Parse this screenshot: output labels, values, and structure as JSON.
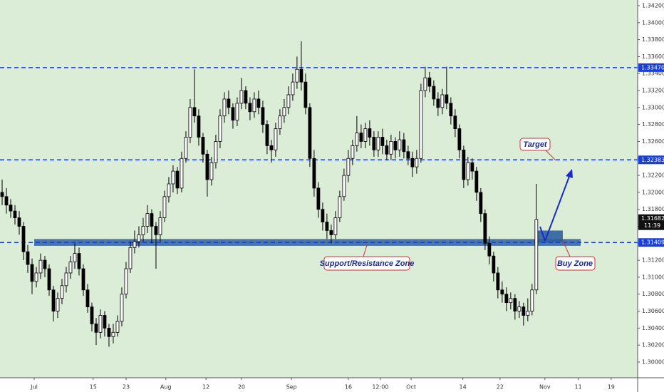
{
  "chart_data": {
    "type": "candlestick",
    "open": [
      1.32,
      1.3195,
      1.3185,
      1.3178,
      1.317,
      1.316,
      1.313,
      1.3115,
      1.3095,
      1.3105,
      1.312,
      1.311,
      1.3085,
      1.306,
      1.3075,
      1.309,
      1.3105,
      1.3118,
      1.3128,
      1.311,
      1.3085,
      1.3065,
      1.3045,
      1.3035,
      1.3055,
      1.304,
      1.303,
      1.3035,
      1.3048,
      1.308,
      1.311,
      1.3135,
      1.3142,
      1.315,
      1.316,
      1.3175,
      1.316,
      1.315,
      1.317,
      1.3195,
      1.321,
      1.3225,
      1.3205,
      1.324,
      1.3265,
      1.33,
      1.329,
      1.3265,
      1.3245,
      1.3215,
      1.3235,
      1.326,
      1.329,
      1.331,
      1.33,
      1.3285,
      1.3305,
      1.332,
      1.3305,
      1.3295,
      1.331,
      1.33,
      1.328,
      1.3255,
      1.325,
      1.3275,
      1.329,
      1.33,
      1.3315,
      1.333,
      1.3345,
      1.333,
      1.33,
      1.324,
      1.3205,
      1.318,
      1.3165,
      1.3155,
      1.315,
      1.317,
      1.3195,
      1.322,
      1.324,
      1.3255,
      1.327,
      1.326,
      1.3275,
      1.3265,
      1.325,
      1.3265,
      1.3255,
      1.3245,
      1.326,
      1.325,
      1.3262,
      1.3248,
      1.324,
      1.323,
      1.324,
      1.332,
      1.3335,
      1.3325,
      1.331,
      1.33,
      1.3315,
      1.3305,
      1.329,
      1.3275,
      1.325,
      1.3215,
      1.3235,
      1.3225,
      1.32,
      1.3175,
      1.314,
      1.3125,
      1.3105,
      1.3085,
      1.308,
      1.307,
      1.3075,
      1.306,
      1.3065,
      1.3055,
      1.306,
      1.3085
    ],
    "high": [
      1.3215,
      1.3205,
      1.3192,
      1.3185,
      1.3178,
      1.3165,
      1.3138,
      1.3122,
      1.3112,
      1.3128,
      1.3125,
      1.3115,
      1.309,
      1.3082,
      1.3098,
      1.3112,
      1.3125,
      1.314,
      1.3135,
      1.3115,
      1.3092,
      1.307,
      1.3052,
      1.3062,
      1.306,
      1.3045,
      1.3045,
      1.3055,
      1.3088,
      1.3118,
      1.3142,
      1.3155,
      1.316,
      1.317,
      1.3185,
      1.318,
      1.3165,
      1.3178,
      1.3202,
      1.3218,
      1.3232,
      1.323,
      1.3248,
      1.3272,
      1.331,
      1.3345,
      1.3298,
      1.327,
      1.325,
      1.3242,
      1.3268,
      1.3298,
      1.3318,
      1.332,
      1.3305,
      1.3312,
      1.3335,
      1.3325,
      1.3312,
      1.3318,
      1.332,
      1.3308,
      1.3285,
      1.3262,
      1.3282,
      1.3298,
      1.331,
      1.3325,
      1.334,
      1.336,
      1.3378,
      1.334,
      1.3305,
      1.325,
      1.3212,
      1.3188,
      1.3175,
      1.3162,
      1.3178,
      1.3202,
      1.3228,
      1.325,
      1.3262,
      1.329,
      1.328,
      1.3282,
      1.3285,
      1.3272,
      1.3272,
      1.3275,
      1.3262,
      1.3268,
      1.3265,
      1.3272,
      1.327,
      1.3255,
      1.3248,
      1.325,
      1.3328,
      1.3348,
      1.3342,
      1.3332,
      1.3318,
      1.3322,
      1.3348,
      1.3312,
      1.3298,
      1.328,
      1.3255,
      1.3242,
      1.324,
      1.323,
      1.3205,
      1.318,
      1.3148,
      1.313,
      1.3112,
      1.3095,
      1.3088,
      1.3082,
      1.308,
      1.3072,
      1.307,
      1.3075,
      1.3092,
      1.321
    ],
    "low": [
      1.3185,
      1.3175,
      1.317,
      1.3162,
      1.315,
      1.312,
      1.3105,
      1.308,
      1.3088,
      1.3098,
      1.31,
      1.3078,
      1.3048,
      1.3052,
      1.3068,
      1.3082,
      1.3098,
      1.311,
      1.3102,
      1.3078,
      1.3058,
      1.3036,
      1.302,
      1.3028,
      1.303,
      1.3018,
      1.3022,
      1.303,
      1.3042,
      1.3075,
      1.3105,
      1.3128,
      1.3135,
      1.3142,
      1.3152,
      1.314,
      1.311,
      1.3142,
      1.3165,
      1.3188,
      1.32,
      1.3198,
      1.32,
      1.3235,
      1.3258,
      1.3282,
      1.3255,
      1.3235,
      1.3195,
      1.3208,
      1.3228,
      1.3252,
      1.3282,
      1.3292,
      1.3275,
      1.3278,
      1.3298,
      1.3298,
      1.3285,
      1.3288,
      1.3292,
      1.327,
      1.3245,
      1.3235,
      1.3242,
      1.3268,
      1.3282,
      1.3292,
      1.3308,
      1.3322,
      1.332,
      1.3292,
      1.323,
      1.3195,
      1.317,
      1.3155,
      1.3145,
      1.314,
      1.3145,
      1.3165,
      1.319,
      1.3212,
      1.3232,
      1.3248,
      1.3252,
      1.3252,
      1.3255,
      1.3242,
      1.3242,
      1.3245,
      1.3238,
      1.3238,
      1.324,
      1.3242,
      1.324,
      1.3232,
      1.3218,
      1.3222,
      1.3235,
      1.3312,
      1.3318,
      1.3302,
      1.329,
      1.3292,
      1.3298,
      1.328,
      1.3265,
      1.324,
      1.3205,
      1.3208,
      1.3215,
      1.319,
      1.3165,
      1.3132,
      1.3115,
      1.3095,
      1.3075,
      1.307,
      1.306,
      1.3062,
      1.305,
      1.3052,
      1.3043,
      1.3048,
      1.3055,
      1.308
    ],
    "close": [
      1.3195,
      1.3185,
      1.3178,
      1.317,
      1.316,
      1.313,
      1.3115,
      1.3095,
      1.3105,
      1.312,
      1.311,
      1.3085,
      1.306,
      1.3075,
      1.309,
      1.3105,
      1.3118,
      1.3128,
      1.311,
      1.3085,
      1.3065,
      1.3045,
      1.3035,
      1.3055,
      1.304,
      1.303,
      1.3035,
      1.3048,
      1.308,
      1.311,
      1.3135,
      1.3142,
      1.315,
      1.316,
      1.3175,
      1.316,
      1.315,
      1.317,
      1.3195,
      1.321,
      1.3225,
      1.3205,
      1.324,
      1.3265,
      1.33,
      1.329,
      1.3265,
      1.3245,
      1.3215,
      1.3235,
      1.326,
      1.329,
      1.331,
      1.33,
      1.3285,
      1.3305,
      1.332,
      1.3305,
      1.3295,
      1.331,
      1.33,
      1.328,
      1.3255,
      1.325,
      1.3275,
      1.329,
      1.33,
      1.3315,
      1.333,
      1.3345,
      1.333,
      1.33,
      1.324,
      1.3205,
      1.318,
      1.3165,
      1.3155,
      1.315,
      1.317,
      1.3195,
      1.322,
      1.324,
      1.3255,
      1.327,
      1.326,
      1.3275,
      1.3265,
      1.325,
      1.3265,
      1.3255,
      1.3245,
      1.326,
      1.325,
      1.3262,
      1.3248,
      1.324,
      1.323,
      1.324,
      1.332,
      1.3335,
      1.3325,
      1.331,
      1.33,
      1.3315,
      1.3305,
      1.329,
      1.3275,
      1.325,
      1.3215,
      1.3235,
      1.3225,
      1.32,
      1.3175,
      1.314,
      1.3125,
      1.3105,
      1.3085,
      1.308,
      1.307,
      1.3075,
      1.306,
      1.3065,
      1.3055,
      1.306,
      1.3085,
      1.3168
    ],
    "up_color": "#ffffff",
    "down_color": "#000000",
    "wick_color": "#000000",
    "xlim": [
      -0.5,
      148.7
    ],
    "xticks": [
      {
        "value": 7.5,
        "label": "Jul"
      },
      {
        "value": 21.3,
        "label": "15"
      },
      {
        "value": 29,
        "label": "23"
      },
      {
        "value": 38.3,
        "label": "Aug"
      },
      {
        "value": 47.7,
        "label": "12"
      },
      {
        "value": 56,
        "label": "20"
      },
      {
        "value": 67.7,
        "label": "Sep"
      },
      {
        "value": 81,
        "label": "16"
      },
      {
        "value": 88.5,
        "label": "12:00"
      },
      {
        "value": 95.7,
        "label": "Oct"
      },
      {
        "value": 107.8,
        "label": "14"
      },
      {
        "value": 116.5,
        "label": "22"
      },
      {
        "value": 127,
        "label": "Nov"
      },
      {
        "value": 134.8,
        "label": "11"
      },
      {
        "value": 142.5,
        "label": "19"
      }
    ],
    "ylim": [
      1.29815,
      1.34267
    ],
    "yticks": [
      {
        "value": 1.3,
        "label": "1.30000"
      },
      {
        "value": 1.302,
        "label": "1.30200"
      },
      {
        "value": 1.304,
        "label": "1.30400"
      },
      {
        "value": 1.306,
        "label": "1.30600"
      },
      {
        "value": 1.308,
        "label": "1.30800"
      },
      {
        "value": 1.31,
        "label": "1.31000"
      },
      {
        "value": 1.312,
        "label": "1.31200"
      },
      {
        "value": 1.314,
        "label": "1.31400"
      },
      {
        "value": 1.316,
        "label": "1.31600"
      },
      {
        "value": 1.318,
        "label": "1.31800"
      },
      {
        "value": 1.32,
        "label": "1.32000"
      },
      {
        "value": 1.322,
        "label": "1.32200"
      },
      {
        "value": 1.324,
        "label": "1.32400"
      },
      {
        "value": 1.326,
        "label": "1.32600"
      },
      {
        "value": 1.328,
        "label": "1.32800"
      },
      {
        "value": 1.33,
        "label": "1.33000"
      },
      {
        "value": 1.332,
        "label": "1.33200"
      },
      {
        "value": 1.334,
        "label": "1.33400"
      },
      {
        "value": 1.336,
        "label": "1.33600"
      },
      {
        "value": 1.338,
        "label": "1.33800"
      },
      {
        "value": 1.34,
        "label": "1.34000"
      },
      {
        "value": 1.342,
        "label": "1.34200"
      }
    ],
    "levels": [
      {
        "value": 1.3347,
        "label": "1.33470"
      },
      {
        "value": 1.32383,
        "label": "1.32383"
      },
      {
        "value": 1.31409,
        "label": "1.31409"
      }
    ],
    "level_color": "#1a3fd6",
    "zone": {
      "low": 1.3137,
      "high": 1.3145
    },
    "buy_zone": {
      "low": 1.3141,
      "high": 1.3155
    },
    "zone_color": "#2e5f9e",
    "last_price": {
      "value": 1.31682,
      "label": "1.31682"
    },
    "countdown": "11:39",
    "annotations": {
      "target": "Target",
      "zone": "Support/Resistance Zone",
      "buy": "Buy Zone"
    }
  }
}
